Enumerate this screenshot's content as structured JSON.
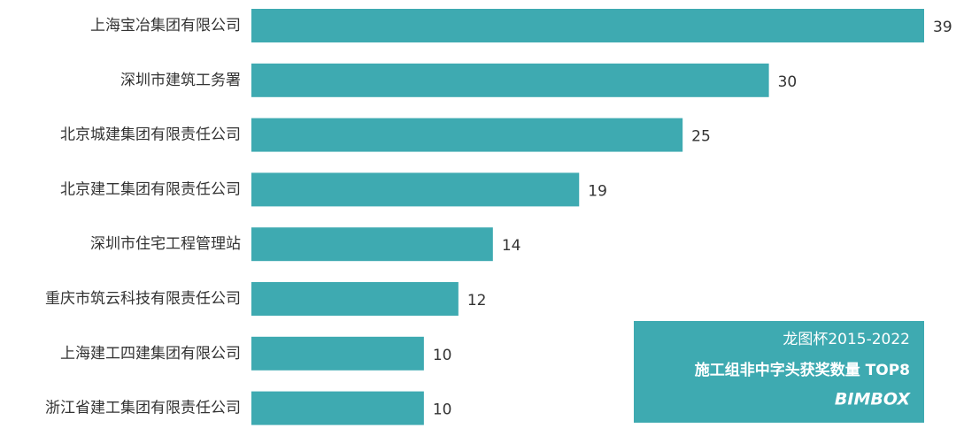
{
  "chart_data": {
    "type": "bar",
    "orientation": "horizontal",
    "title": "龙图杯2015-2022",
    "subtitle": "施工组非中字头获奖数量 TOP8",
    "annotation": "BIMBOX",
    "categories": [
      "上海宝冶集团有限公司",
      "深圳市建筑工务署",
      "北京城建集团有限责任公司",
      "北京建工集团有限责任公司",
      "深圳市住宅工程管理站",
      "重庆市筑云科技有限责任公司",
      "上海建工四建集团有限公司",
      "浙江省建工集团有限责任公司"
    ],
    "values": [
      39,
      30,
      25,
      19,
      14,
      12,
      10,
      10
    ],
    "color": "#3eaab1"
  }
}
